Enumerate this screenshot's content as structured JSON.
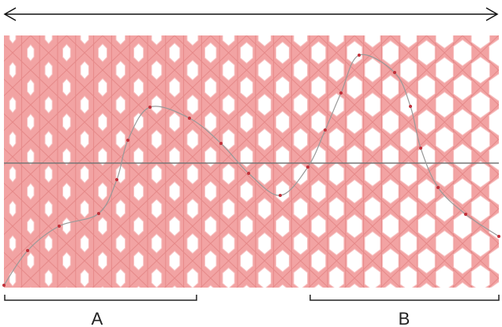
{
  "labels": {
    "a": "A",
    "b": "B"
  }
}
